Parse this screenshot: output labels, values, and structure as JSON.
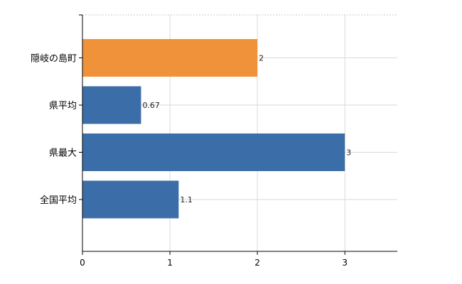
{
  "chart_data": {
    "type": "bar",
    "orientation": "horizontal",
    "categories": [
      "隠岐の島町",
      "県平均",
      "県最大",
      "全国平均"
    ],
    "values": [
      2,
      0.67,
      3,
      1.1
    ],
    "data_labels": [
      "2",
      "0.67",
      "3",
      "1.1"
    ],
    "bar_colors": [
      "#f0923a",
      "#3b6ea8",
      "#3b6ea8",
      "#3b6ea8"
    ],
    "xlim": [
      0,
      3.6
    ],
    "xticks": [
      0,
      1,
      2,
      3
    ],
    "grid": true,
    "title": "",
    "xlabel": "",
    "ylabel": ""
  }
}
